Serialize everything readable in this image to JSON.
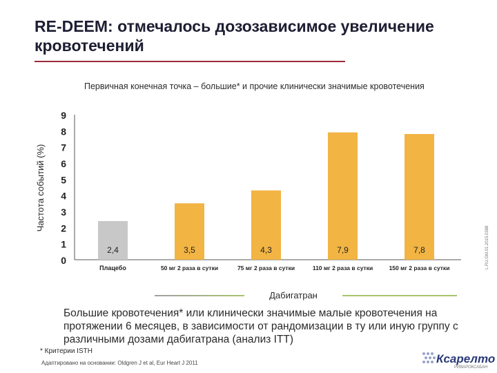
{
  "slide": {
    "title": "RE-DEEM: отмечалось дозозависимое увеличение кровотечений",
    "summary": "Большие кровотечения* или клинически значимые малые кровотечения на протяжении 6 месяцев, в зависимости от рандомизации в ту или иную группу с различными дозами дабигатрана (анализ ITT)",
    "footnote": "* Критерии ISTH",
    "source": "Адаптировано на основании: Oldgren J et al, Eur Heart J 2011",
    "logo": {
      "name": "Кcарелто",
      "subtitle": "РИВАРОКСАБАН"
    },
    "side_code": "L.RU.GM.01.2015.0388"
  },
  "colors": {
    "accent_bar": "#f2b443",
    "placebo_bar": "#c8c8c8",
    "axis": "#555555",
    "brace_gray": "#a0a0a0",
    "brace_green": "#a8c46e",
    "title_rule": "#9b2a3c"
  },
  "chart_data": {
    "type": "bar",
    "title": "Первичная конечная точка – большие* и прочие клинически значимые кровотечения",
    "ylabel": "Частота событий (%)",
    "xlabel": "",
    "ylim": [
      0,
      9
    ],
    "yticks": [
      0,
      1,
      2,
      3,
      4,
      5,
      6,
      7,
      8,
      9
    ],
    "categories": [
      "Плацебо",
      "50 мг 2 раза в сутки",
      "75 мг 2 раза в сутки",
      "110 мг 2 раза в сутки",
      "150 мг 2 раза в сутки"
    ],
    "values": [
      2.4,
      3.5,
      4.3,
      7.9,
      7.8
    ],
    "value_labels": [
      "2,4",
      "3,5",
      "4,3",
      "7,9",
      "7,8"
    ],
    "group_label": "Дабигатран",
    "grid": false
  }
}
